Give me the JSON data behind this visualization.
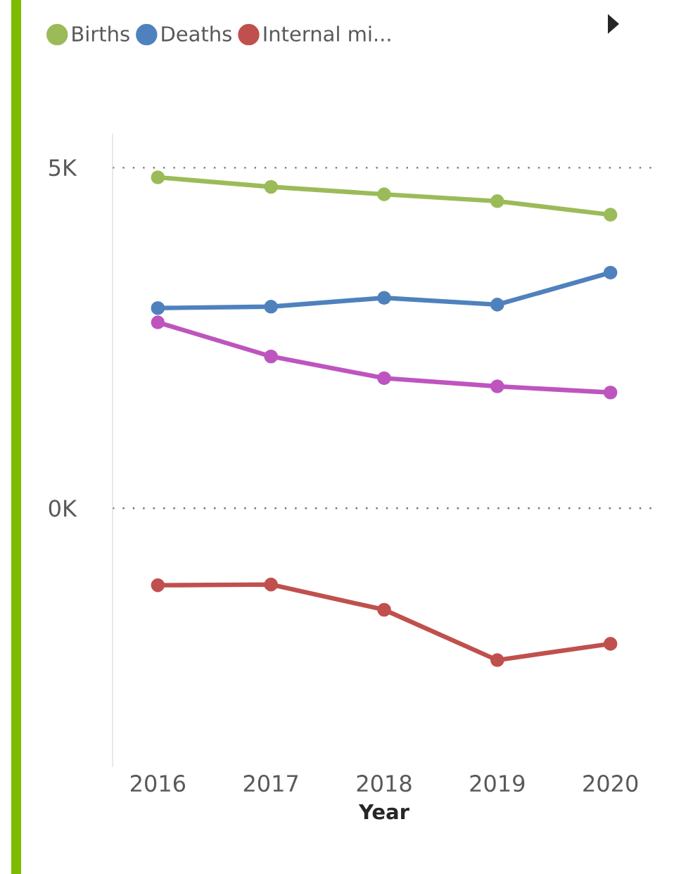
{
  "chart_data": {
    "type": "line",
    "xlabel": "Year",
    "categories": [
      "2016",
      "2017",
      "2018",
      "2019",
      "2020"
    ],
    "series": [
      {
        "name": "Births",
        "color": "#9bbb59",
        "values": [
          4.86,
          4.72,
          4.61,
          4.51,
          4.31
        ]
      },
      {
        "name": "Deaths",
        "color": "#4f81bd",
        "values": [
          2.94,
          2.96,
          3.09,
          2.99,
          3.46
        ]
      },
      {
        "name": "Internal mi...",
        "color": "#c0504d",
        "values": [
          -1.13,
          -1.12,
          -1.49,
          -2.23,
          -1.99
        ]
      },
      {
        "color": "#be55bf",
        "values": [
          2.73,
          2.23,
          1.91,
          1.79,
          1.7
        ]
      }
    ],
    "ylim": [
      -3.8,
      5.5
    ],
    "yticks": [
      {
        "value": 0,
        "label": "0K"
      },
      {
        "value": 5,
        "label": "5K"
      }
    ],
    "grid": "y",
    "legend": "top left",
    "marker": "circle",
    "line_style": "solid"
  }
}
